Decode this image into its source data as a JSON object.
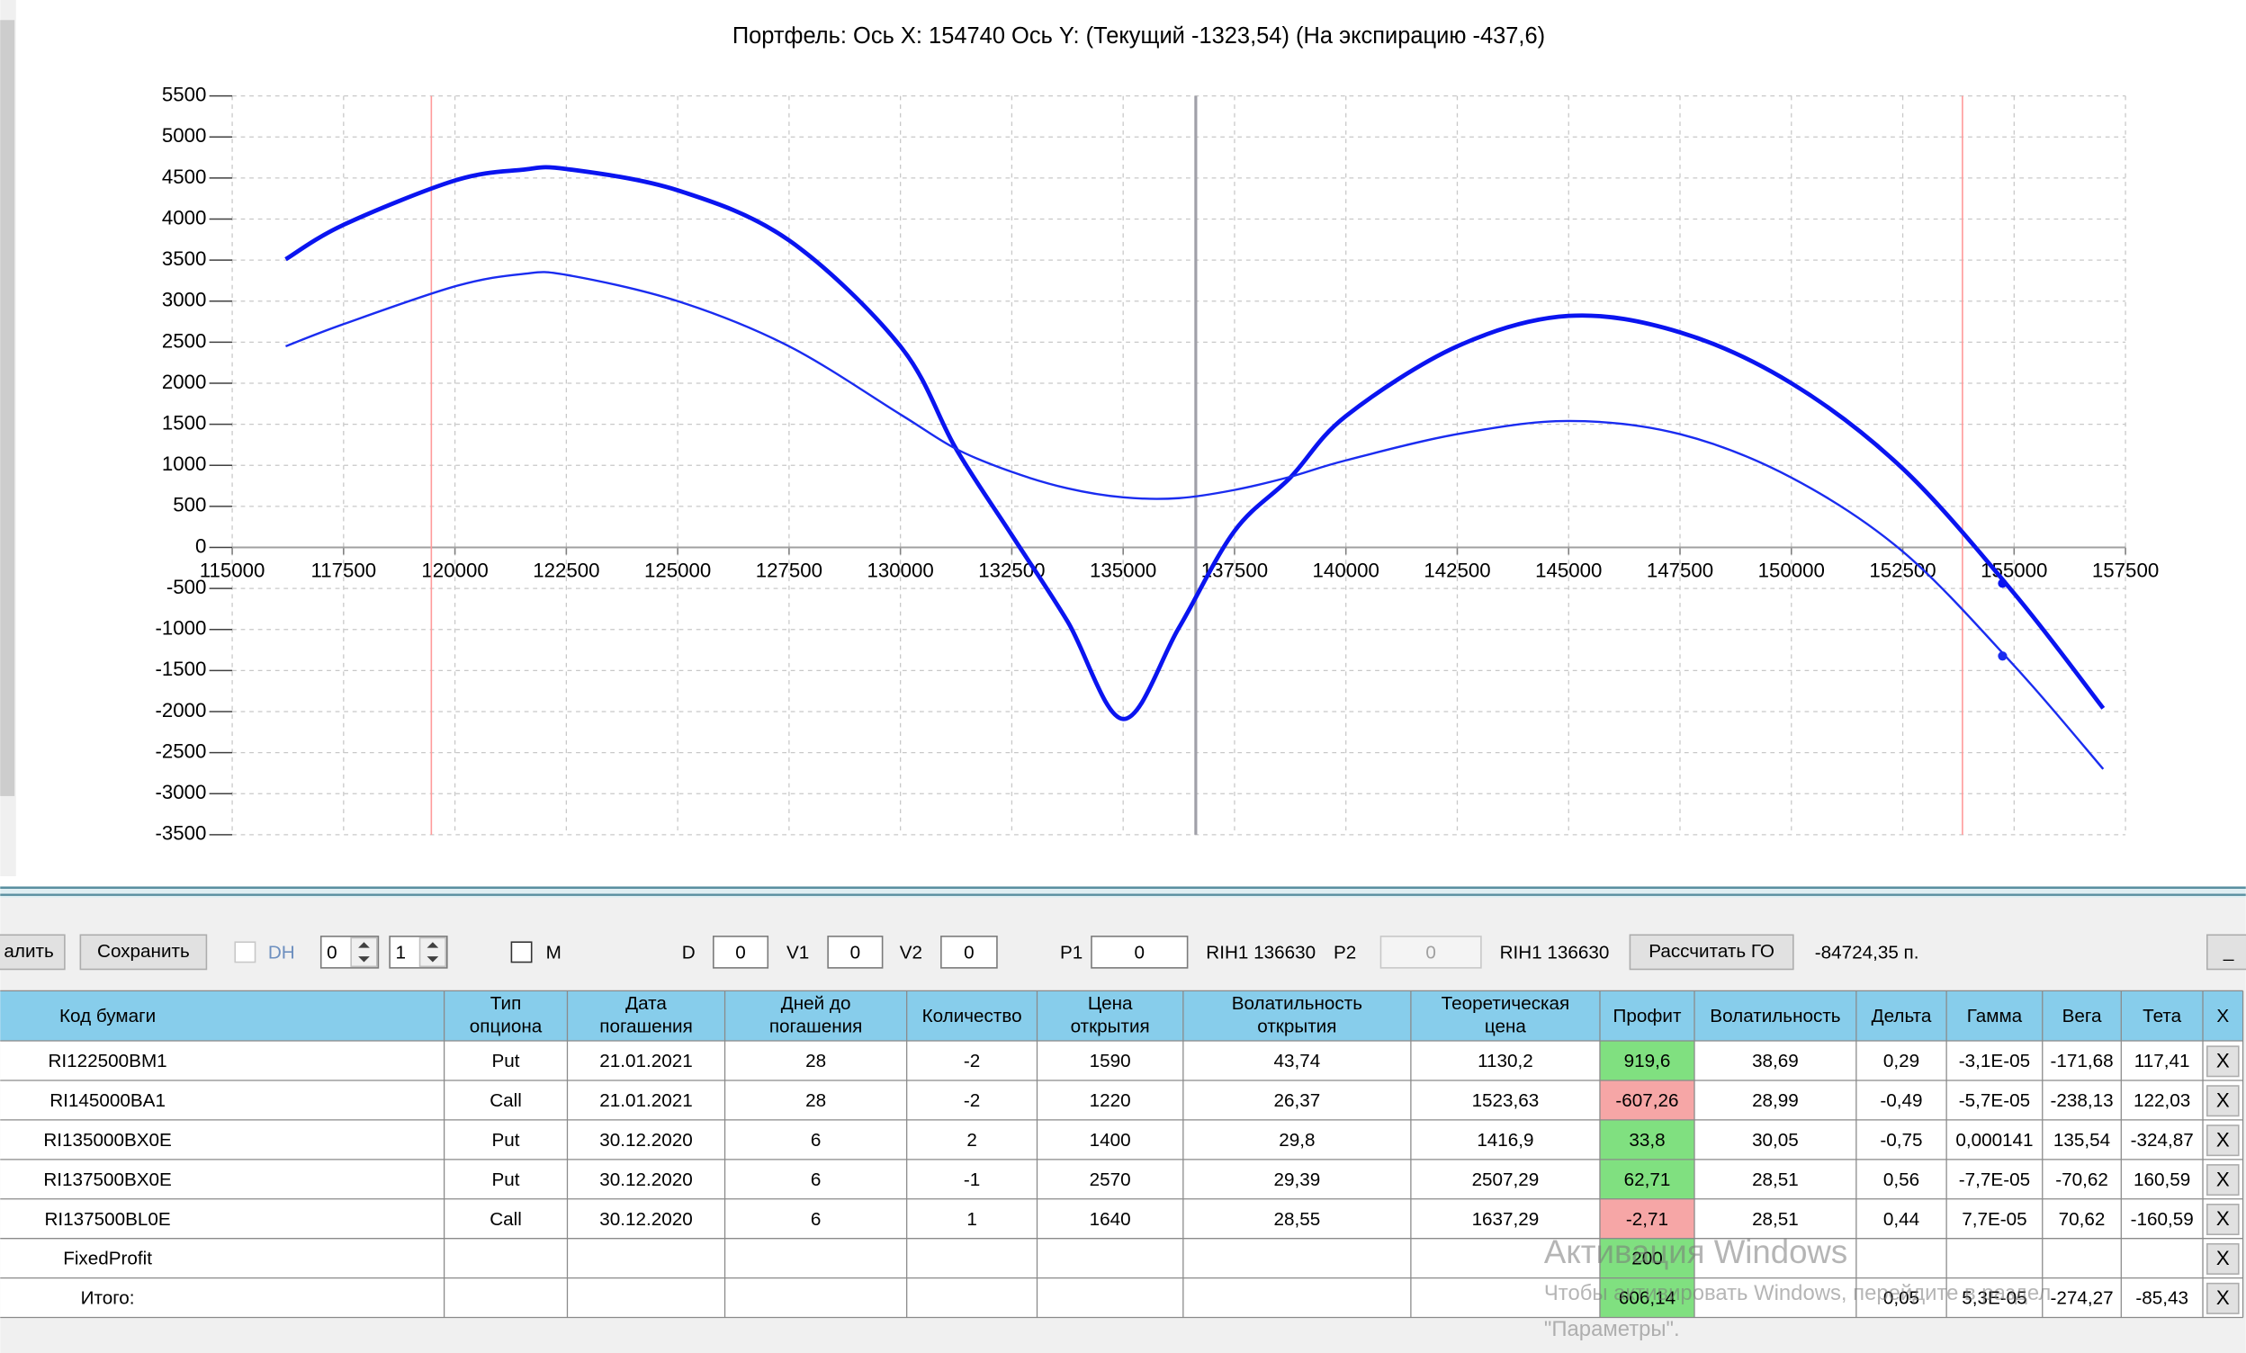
{
  "chart_data": {
    "type": "line",
    "title": "Портфель: Ось X: 154740 Ось Y:  (Текущий -1323,54)  (На экспирацию -437,6)",
    "x": [
      116200,
      117500,
      120000,
      121500,
      122500,
      125000,
      127500,
      130000,
      131250,
      132500,
      133750,
      135000,
      136250,
      137500,
      138750,
      140000,
      142500,
      145000,
      147500,
      150000,
      152500,
      155000,
      157000
    ],
    "series": [
      {
        "color": "#0a14f0",
        "width": 3,
        "values": [
          3510,
          3930,
          4470,
          4600,
          4610,
          4350,
          3740,
          2450,
          1200,
          150,
          -900,
          -2090,
          -980,
          200,
          850,
          1600,
          2450,
          2820,
          2620,
          2000,
          960,
          -560,
          -1960
        ]
      },
      {
        "color": "#1a2cf0",
        "width": 1.5,
        "values": [
          2450,
          2720,
          3180,
          3330,
          3320,
          3000,
          2450,
          1620,
          1200,
          920,
          720,
          610,
          600,
          700,
          860,
          1060,
          1380,
          1540,
          1380,
          850,
          -50,
          -1440,
          -2700
        ]
      }
    ],
    "markers": [
      {
        "x": 154740,
        "y": -437.6
      },
      {
        "x": 154740,
        "y": -1323.54
      }
    ],
    "vlines": [
      {
        "x": 119470,
        "color": "#ff9a9a"
      },
      {
        "x": 136630,
        "color": "#a0a0a8"
      },
      {
        "x": 153840,
        "color": "#ff9a9a"
      }
    ],
    "xlim": [
      115000,
      157500
    ],
    "ylim": [
      -3500,
      5500
    ],
    "xticks": [
      115000,
      117500,
      120000,
      122500,
      125000,
      127500,
      130000,
      132500,
      135000,
      137500,
      140000,
      142500,
      145000,
      147500,
      150000,
      152500,
      155000,
      157500
    ],
    "yticks": [
      -3500,
      -3000,
      -2500,
      -2000,
      -1500,
      -1000,
      -500,
      0,
      500,
      1000,
      1500,
      2000,
      2500,
      3000,
      3500,
      4000,
      4500,
      5000,
      5500
    ],
    "grid": true
  },
  "toolbar": {
    "delete_button": "алить",
    "save_button": "Сохранить",
    "dh_label": "DH",
    "spinner1": "0",
    "spinner2": "1",
    "m_label": "M",
    "d_label": "D",
    "d_value": "0",
    "v1_label": "V1",
    "v1_value": "0",
    "v2_label": "V2",
    "v2_value": "0",
    "p1_label": "P1",
    "p1_value": "0",
    "p1_ticker": "RIH1 136630",
    "p2_label": "P2",
    "p2_value": "0",
    "p2_ticker": "RIH1 136630",
    "calc_button": "Рассчитать ГО",
    "margin": "-84724,35 п.",
    "minimize_button": "_"
  },
  "table": {
    "header": [
      [
        "Код бумаги"
      ],
      [
        "Тип",
        "опциона"
      ],
      [
        "Дата",
        "погашения"
      ],
      [
        "Дней до",
        "погашения"
      ],
      [
        "Количество"
      ],
      [
        "Цена",
        "открытия"
      ],
      [
        "Волатильность",
        "открытия"
      ],
      [
        "Теоретическая",
        "цена"
      ],
      [
        "Профит"
      ],
      [
        "Волатильность"
      ],
      [
        "Дельта"
      ],
      [
        "Гамма"
      ],
      [
        "Вега"
      ],
      [
        "Тета"
      ],
      [
        "X"
      ]
    ],
    "rows": [
      [
        "RI122500BM1",
        "Put",
        "21.01.2021",
        "28",
        "-2",
        "1590",
        "43,74",
        "1130,2",
        "919,6",
        "38,69",
        "0,29",
        "-3,1E-05",
        "-171,68",
        "117,41",
        "X"
      ],
      [
        "RI145000BA1",
        "Call",
        "21.01.2021",
        "28",
        "-2",
        "1220",
        "26,37",
        "1523,63",
        "-607,26",
        "28,99",
        "-0,49",
        "-5,7E-05",
        "-238,13",
        "122,03",
        "X"
      ],
      [
        "RI135000BX0E",
        "Put",
        "30.12.2020",
        "6",
        "2",
        "1400",
        "29,8",
        "1416,9",
        "33,8",
        "30,05",
        "-0,75",
        "0,000141",
        "135,54",
        "-324,87",
        "X"
      ],
      [
        "RI137500BX0E",
        "Put",
        "30.12.2020",
        "6",
        "-1",
        "2570",
        "29,39",
        "2507,29",
        "62,71",
        "28,51",
        "0,56",
        "-7,7E-05",
        "-70,62",
        "160,59",
        "X"
      ],
      [
        "RI137500BL0E",
        "Call",
        "30.12.2020",
        "6",
        "1",
        "1640",
        "28,55",
        "1637,29",
        "-2,71",
        "28,51",
        "0,44",
        "7,7E-05",
        "70,62",
        "-160,59",
        "X"
      ],
      [
        "FixedProfit",
        null,
        null,
        null,
        null,
        null,
        null,
        null,
        "200",
        null,
        null,
        null,
        null,
        null,
        "X"
      ],
      [
        "Итого:",
        null,
        null,
        null,
        null,
        null,
        null,
        null,
        "606,14",
        null,
        "0,05",
        "5,3E-05",
        "-274,27",
        "-85,43",
        "X"
      ]
    ],
    "profit_fill": [
      "#80e080",
      "#f6a6a6",
      "#80e080",
      "#80e080",
      "#f6a6a6",
      "#80e080",
      "#80e080"
    ]
  },
  "watermark": {
    "title": "Активация Windows",
    "line1": "Чтобы активировать Windows, перейдите в раздел",
    "line2": "\"Параметры\"."
  }
}
